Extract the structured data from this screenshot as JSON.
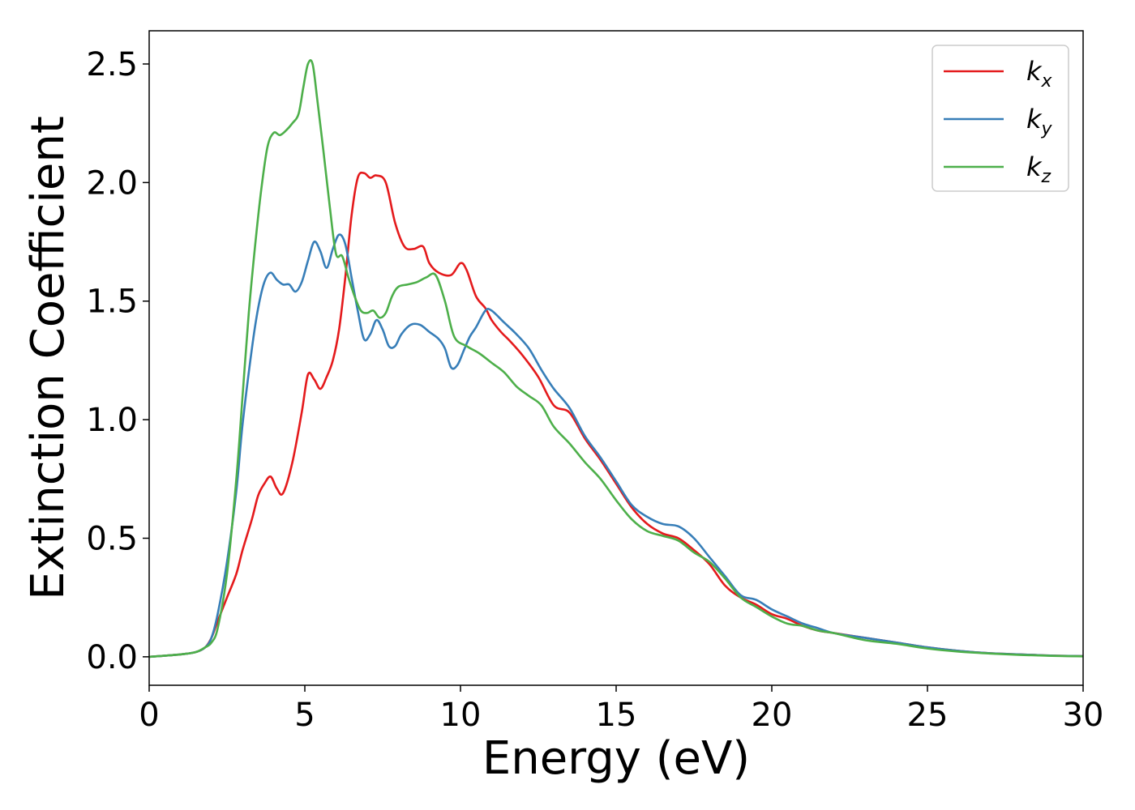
{
  "chart_data": {
    "type": "line",
    "title": "",
    "xlabel": "Energy (eV)",
    "ylabel": "Extinction Coefficient",
    "xlim": [
      0,
      30
    ],
    "ylim": [
      -0.12,
      2.64
    ],
    "xticks": [
      0,
      5,
      10,
      15,
      20,
      25,
      30
    ],
    "yticks": [
      0.0,
      0.5,
      1.0,
      1.5,
      2.0,
      2.5
    ],
    "xtick_labels": [
      "0",
      "5",
      "10",
      "15",
      "20",
      "25",
      "30"
    ],
    "ytick_labels": [
      "0.0",
      "0.5",
      "1.0",
      "1.5",
      "2.0",
      "2.5"
    ],
    "grid": false,
    "legend": "top-right",
    "series": [
      {
        "name": "k",
        "subscript": "x",
        "color": "#e41a1c",
        "x": [
          0,
          1,
          1.5,
          1.8,
          2.0,
          2.2,
          2.5,
          2.8,
          3.0,
          3.3,
          3.5,
          3.7,
          3.9,
          4.1,
          4.3,
          4.6,
          4.9,
          5.1,
          5.3,
          5.5,
          5.7,
          5.9,
          6.1,
          6.3,
          6.5,
          6.7,
          6.9,
          7.1,
          7.3,
          7.6,
          7.9,
          8.2,
          8.5,
          8.8,
          9.0,
          9.3,
          9.7,
          10.0,
          10.2,
          10.5,
          10.8,
          11.0,
          11.3,
          11.6,
          12.0,
          12.5,
          13.0,
          13.5,
          14.0,
          14.5,
          15.0,
          15.5,
          16.0,
          16.5,
          17.0,
          17.5,
          18.0,
          18.5,
          19.0,
          19.5,
          20.0,
          20.5,
          21.0,
          21.5,
          22.0,
          23.0,
          24.0,
          25.0,
          26.0,
          27.0,
          28.0,
          29.0,
          30.0
        ],
        "y": [
          0.0,
          0.01,
          0.02,
          0.04,
          0.08,
          0.15,
          0.25,
          0.35,
          0.45,
          0.58,
          0.68,
          0.73,
          0.76,
          0.71,
          0.69,
          0.82,
          1.03,
          1.19,
          1.17,
          1.13,
          1.18,
          1.25,
          1.38,
          1.6,
          1.86,
          2.02,
          2.04,
          2.02,
          2.03,
          2.0,
          1.83,
          1.73,
          1.72,
          1.73,
          1.66,
          1.62,
          1.61,
          1.66,
          1.63,
          1.52,
          1.47,
          1.42,
          1.37,
          1.33,
          1.27,
          1.18,
          1.06,
          1.03,
          0.92,
          0.83,
          0.73,
          0.63,
          0.56,
          0.52,
          0.5,
          0.45,
          0.39,
          0.3,
          0.25,
          0.22,
          0.18,
          0.16,
          0.13,
          0.11,
          0.1,
          0.08,
          0.06,
          0.04,
          0.025,
          0.015,
          0.01,
          0.005,
          0.003
        ]
      },
      {
        "name": "k",
        "subscript": "y",
        "color": "#377eb8",
        "x": [
          0,
          1,
          1.5,
          1.8,
          2.0,
          2.2,
          2.5,
          2.8,
          3.0,
          3.3,
          3.5,
          3.7,
          3.9,
          4.1,
          4.3,
          4.5,
          4.7,
          4.9,
          5.1,
          5.3,
          5.5,
          5.7,
          5.9,
          6.1,
          6.3,
          6.5,
          6.7,
          6.9,
          7.1,
          7.3,
          7.5,
          7.7,
          7.9,
          8.1,
          8.4,
          8.7,
          9.0,
          9.3,
          9.5,
          9.7,
          9.9,
          10.1,
          10.3,
          10.5,
          10.8,
          11.0,
          11.4,
          11.8,
          12.2,
          12.6,
          13.0,
          13.5,
          14.0,
          14.5,
          15.0,
          15.5,
          16.0,
          16.5,
          17.0,
          17.5,
          18.0,
          18.5,
          19.0,
          19.5,
          20.0,
          20.5,
          21.0,
          21.5,
          22.0,
          23.0,
          24.0,
          25.0,
          26.0,
          27.0,
          28.0,
          29.0,
          30.0
        ],
        "y": [
          0.0,
          0.01,
          0.02,
          0.04,
          0.08,
          0.18,
          0.4,
          0.7,
          0.98,
          1.3,
          1.47,
          1.58,
          1.62,
          1.59,
          1.57,
          1.57,
          1.54,
          1.58,
          1.67,
          1.75,
          1.71,
          1.64,
          1.72,
          1.78,
          1.74,
          1.6,
          1.46,
          1.34,
          1.36,
          1.42,
          1.38,
          1.31,
          1.31,
          1.36,
          1.4,
          1.4,
          1.37,
          1.34,
          1.3,
          1.22,
          1.23,
          1.29,
          1.35,
          1.39,
          1.46,
          1.46,
          1.41,
          1.36,
          1.3,
          1.21,
          1.13,
          1.05,
          0.93,
          0.84,
          0.74,
          0.64,
          0.59,
          0.56,
          0.55,
          0.5,
          0.42,
          0.34,
          0.26,
          0.24,
          0.2,
          0.17,
          0.14,
          0.12,
          0.1,
          0.08,
          0.06,
          0.04,
          0.025,
          0.015,
          0.01,
          0.005,
          0.003
        ]
      },
      {
        "name": "k",
        "subscript": "z",
        "color": "#4daf4a",
        "x": [
          0,
          1,
          1.5,
          1.8,
          2.0,
          2.2,
          2.5,
          2.8,
          3.0,
          3.2,
          3.4,
          3.6,
          3.8,
          4.0,
          4.2,
          4.4,
          4.6,
          4.8,
          4.95,
          5.1,
          5.25,
          5.4,
          5.6,
          5.8,
          6.0,
          6.2,
          6.4,
          6.6,
          6.8,
          7.0,
          7.2,
          7.4,
          7.6,
          7.8,
          8.0,
          8.3,
          8.6,
          8.9,
          9.2,
          9.5,
          9.8,
          10.2,
          10.6,
          11.0,
          11.4,
          11.8,
          12.2,
          12.6,
          13.0,
          13.5,
          14.0,
          14.5,
          15.0,
          15.5,
          16.0,
          16.5,
          17.0,
          17.5,
          18.0,
          18.5,
          19.0,
          19.5,
          20.0,
          20.5,
          21.0,
          21.5,
          22.0,
          23.0,
          24.0,
          25.0,
          26.0,
          27.0,
          28.0,
          29.0,
          30.0
        ],
        "y": [
          0.0,
          0.01,
          0.02,
          0.04,
          0.06,
          0.12,
          0.35,
          0.75,
          1.1,
          1.45,
          1.73,
          1.97,
          2.15,
          2.21,
          2.2,
          2.22,
          2.25,
          2.29,
          2.4,
          2.5,
          2.5,
          2.35,
          2.13,
          1.9,
          1.7,
          1.69,
          1.6,
          1.52,
          1.46,
          1.45,
          1.46,
          1.43,
          1.45,
          1.52,
          1.56,
          1.57,
          1.58,
          1.6,
          1.61,
          1.5,
          1.35,
          1.31,
          1.28,
          1.24,
          1.2,
          1.14,
          1.1,
          1.06,
          0.97,
          0.9,
          0.82,
          0.75,
          0.66,
          0.58,
          0.53,
          0.51,
          0.49,
          0.44,
          0.4,
          0.33,
          0.25,
          0.21,
          0.17,
          0.14,
          0.13,
          0.11,
          0.1,
          0.07,
          0.055,
          0.035,
          0.022,
          0.014,
          0.008,
          0.004,
          0.002
        ]
      }
    ]
  }
}
